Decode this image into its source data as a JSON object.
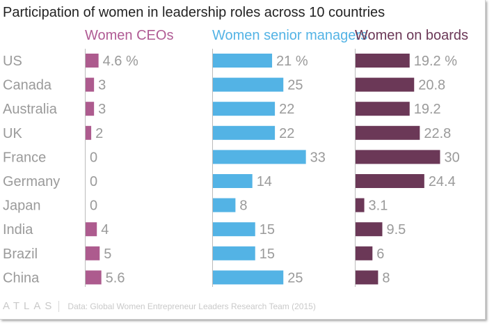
{
  "title": "Participation of women in leadership roles across 10 countries",
  "footer": {
    "logo": "ATLAS",
    "source": "Data: Global Women Entrepreneur Leaders Research Team (2015)"
  },
  "chart_data": {
    "type": "bar",
    "orientation": "horizontal",
    "title": "Participation of women in leadership roles across 10 countries",
    "categories": [
      "US",
      "Canada",
      "Australia",
      "UK",
      "France",
      "Germany",
      "Japan",
      "India",
      "Brazil",
      "China"
    ],
    "series": [
      {
        "name": "Women CEOs",
        "color": "#ad5b8e",
        "values": [
          4.6,
          3,
          3,
          2,
          0,
          0,
          0,
          4,
          5,
          5.6
        ],
        "labels": [
          "4.6 %",
          "3",
          "3",
          "2",
          "0",
          "0",
          "0",
          "4",
          "5",
          "5.6"
        ]
      },
      {
        "name": "Women senior managers",
        "color": "#53b3e5",
        "values": [
          21,
          25,
          22,
          22,
          33,
          14,
          8,
          15,
          15,
          25
        ],
        "labels": [
          "21 %",
          "25",
          "22",
          "22",
          "33",
          "14",
          "8",
          "15",
          "15",
          "25"
        ]
      },
      {
        "name": "Women on boards",
        "color": "#6b3857",
        "values": [
          19.2,
          20.8,
          19.2,
          22.8,
          30,
          24.4,
          3.1,
          9.5,
          6,
          8
        ],
        "labels": [
          "19.2 %",
          "20.8",
          "19.2",
          "22.8",
          "30",
          "24.4",
          "3.1",
          "9.5",
          "6",
          "8"
        ]
      }
    ],
    "header_colors": [
      "#b05b94",
      "#53b3e5",
      "#6b3857"
    ],
    "label_color": "#9a9a9a",
    "axis_color": "#bbbbbb"
  }
}
